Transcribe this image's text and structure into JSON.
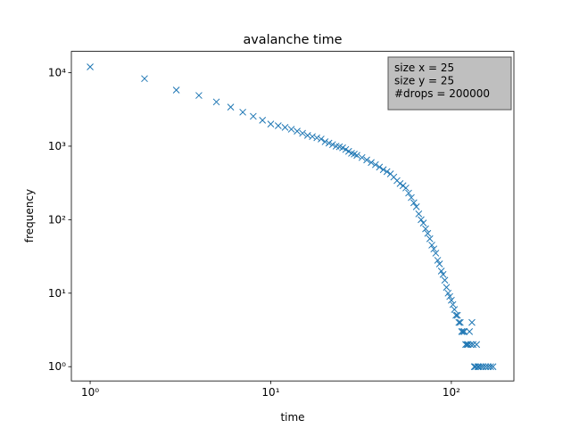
{
  "chart_data": {
    "type": "scatter",
    "title": "avalanche time",
    "xlabel": "time",
    "ylabel": "frequency",
    "xscale": "log",
    "yscale": "log",
    "marker": "x",
    "color": "#1f77b4",
    "annotation": [
      "size x = 25",
      "size y = 25",
      "#drops = 200000"
    ],
    "annotation_background": "#bfbfbf",
    "xlim": [
      0.787,
      222
    ],
    "ylim": [
      0.64,
      19500
    ],
    "xticks": [
      {
        "value": 1,
        "label": "10⁰"
      },
      {
        "value": 10,
        "label": "10¹"
      },
      {
        "value": 100,
        "label": "10²"
      }
    ],
    "yticks": [
      {
        "value": 1,
        "label": "10⁰"
      },
      {
        "value": 10,
        "label": "10¹"
      },
      {
        "value": 100,
        "label": "10²"
      },
      {
        "value": 1000,
        "label": "10³"
      },
      {
        "value": 10000,
        "label": "10⁴"
      }
    ],
    "x": [
      1,
      2,
      3,
      4,
      5,
      6,
      7,
      8,
      9,
      10,
      11,
      12,
      13,
      14,
      15,
      16,
      17,
      18,
      19,
      20,
      21,
      22,
      23,
      24,
      25,
      26,
      27,
      28,
      29,
      30,
      32,
      34,
      36,
      38,
      40,
      42,
      44,
      46,
      48,
      50,
      52,
      54,
      56,
      58,
      60,
      62,
      64,
      66,
      68,
      70,
      72,
      74,
      76,
      78,
      80,
      82,
      84,
      86,
      88,
      90,
      92,
      94,
      96,
      98,
      100,
      102,
      104,
      106,
      108,
      110,
      112,
      114,
      116,
      118,
      120,
      122,
      124,
      126,
      128,
      130,
      132,
      134,
      136,
      138,
      140,
      142,
      146,
      150,
      155,
      160,
      165,
      170
    ],
    "y": [
      12000,
      8300,
      5800,
      4900,
      4000,
      3400,
      2900,
      2550,
      2250,
      2000,
      1900,
      1800,
      1700,
      1600,
      1500,
      1400,
      1350,
      1300,
      1250,
      1150,
      1100,
      1050,
      1000,
      980,
      950,
      900,
      850,
      800,
      780,
      750,
      700,
      650,
      600,
      560,
      520,
      480,
      450,
      420,
      380,
      340,
      310,
      290,
      270,
      230,
      200,
      170,
      150,
      120,
      100,
      90,
      75,
      65,
      55,
      45,
      40,
      35,
      28,
      25,
      20,
      18,
      15,
      12,
      10,
      9,
      8,
      7,
      6,
      5,
      5,
      4,
      4,
      3,
      3,
      3,
      2,
      2,
      2,
      3,
      2,
      4,
      2,
      1,
      1,
      2,
      1,
      1,
      1,
      1,
      1,
      1,
      1,
      1
    ]
  }
}
